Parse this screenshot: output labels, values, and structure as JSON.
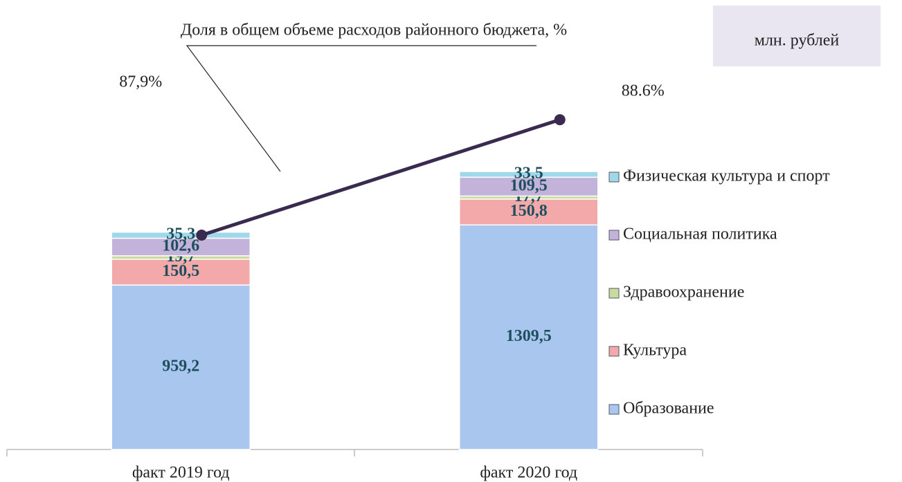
{
  "chart_data": {
    "type": "bar",
    "stacked": true,
    "unit_label": "млн. рублей",
    "categories": [
      "факт 2019 год",
      "факт 2020 год"
    ],
    "ylim": [
      0,
      2500
    ],
    "y2lim": [
      86.6,
      89.2
    ],
    "legend": "right",
    "series": [
      {
        "name": "Образование",
        "color": "#a9c6ee",
        "values": [
          959.2,
          1309.5
        ],
        "value_labels": [
          "959,2",
          "1309,5"
        ]
      },
      {
        "name": "Культура",
        "color": "#f3a9a9",
        "values": [
          150.5,
          150.8
        ],
        "value_labels": [
          "150,5",
          "150,8"
        ]
      },
      {
        "name": "Здравоохранение",
        "color": "#c9dca0",
        "values": [
          19.7,
          17.7
        ],
        "value_labels": [
          "19,7",
          "17,7"
        ]
      },
      {
        "name": "Социальная политика",
        "color": "#c3b3da",
        "values": [
          102.6,
          109.5
        ],
        "value_labels": [
          "102,6",
          "109,5"
        ]
      },
      {
        "name": "Физическая культура и спорт",
        "color": "#9fd8e8",
        "values": [
          35.3,
          33.5
        ],
        "value_labels": [
          "35,3",
          "33,5"
        ]
      },
      {
        "name": "Доля в общем объеме расходов районного бюджета, %",
        "type": "line",
        "axis": "y2",
        "color": "#3b2a4f",
        "values": [
          87.9,
          88.6
        ],
        "value_labels": [
          "87,9%",
          "88.6%"
        ]
      }
    ]
  }
}
